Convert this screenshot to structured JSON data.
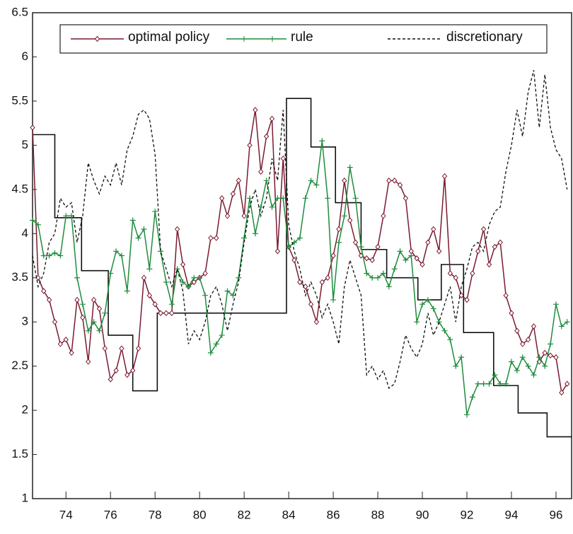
{
  "chart_data": {
    "type": "line",
    "x": [
      72.5,
      72.75,
      73,
      73.25,
      73.5,
      73.75,
      74,
      74.25,
      74.5,
      74.75,
      75,
      75.25,
      75.5,
      75.75,
      76,
      76.25,
      76.5,
      76.75,
      77,
      77.25,
      77.5,
      77.75,
      78,
      78.25,
      78.5,
      78.75,
      79,
      79.25,
      79.5,
      79.75,
      80,
      80.25,
      80.5,
      80.75,
      81,
      81.25,
      81.5,
      81.75,
      82,
      82.25,
      82.5,
      82.75,
      83,
      83.25,
      83.5,
      83.75,
      84,
      84.25,
      84.5,
      84.75,
      85,
      85.25,
      85.5,
      85.75,
      86,
      86.25,
      86.5,
      86.75,
      87,
      87.25,
      87.5,
      87.75,
      88,
      88.25,
      88.5,
      88.75,
      89,
      89.25,
      89.5,
      89.75,
      90,
      90.25,
      90.5,
      90.75,
      91,
      91.25,
      91.5,
      91.75,
      92,
      92.25,
      92.5,
      92.75,
      93,
      93.25,
      93.5,
      93.75,
      94,
      94.25,
      94.5,
      94.75,
      95,
      95.25,
      95.5,
      95.75,
      96,
      96.25,
      96.5
    ],
    "series": [
      {
        "name": "optimal policy",
        "color": "#7a1a2e",
        "marker": "diamond",
        "dash": false,
        "values": [
          5.2,
          3.5,
          3.35,
          3.25,
          3.0,
          2.75,
          2.8,
          2.65,
          3.25,
          3.05,
          2.55,
          3.25,
          3.15,
          2.7,
          2.35,
          2.45,
          2.7,
          2.4,
          2.45,
          2.7,
          3.5,
          3.3,
          3.2,
          3.1,
          3.1,
          3.1,
          4.05,
          3.65,
          3.4,
          3.45,
          3.5,
          3.55,
          3.95,
          3.95,
          4.4,
          4.2,
          4.45,
          4.6,
          4.2,
          5.0,
          5.4,
          4.7,
          5.1,
          5.3,
          3.8,
          4.85,
          3.85,
          3.7,
          3.45,
          3.4,
          3.2,
          3.0,
          3.45,
          3.5,
          3.75,
          4.05,
          4.6,
          4.15,
          3.9,
          3.75,
          3.72,
          3.7,
          3.85,
          4.2,
          4.6,
          4.6,
          4.55,
          4.4,
          3.8,
          3.72,
          3.65,
          3.9,
          4.05,
          3.8,
          4.65,
          3.55,
          3.5,
          3.3,
          3.25,
          3.55,
          3.8,
          4.05,
          3.65,
          3.85,
          3.9,
          3.3,
          3.1,
          2.9,
          2.75,
          2.8,
          2.95,
          2.55,
          2.65,
          2.62,
          2.6,
          2.2,
          2.3
        ]
      },
      {
        "name": "rule",
        "color": "#1e8c3c",
        "marker": "plus",
        "dash": false,
        "values": [
          4.15,
          4.1,
          3.75,
          3.75,
          3.78,
          3.75,
          4.2,
          4.2,
          3.5,
          3.2,
          2.9,
          3.0,
          2.9,
          3.1,
          3.55,
          3.8,
          3.75,
          3.35,
          4.15,
          3.95,
          4.05,
          3.6,
          4.25,
          3.8,
          3.45,
          3.2,
          3.6,
          3.45,
          3.4,
          3.5,
          3.5,
          3.3,
          2.65,
          2.75,
          2.85,
          3.35,
          3.3,
          3.5,
          3.95,
          4.4,
          4.0,
          4.3,
          4.6,
          4.3,
          4.4,
          4.4,
          3.85,
          3.9,
          3.95,
          4.4,
          4.6,
          4.55,
          5.05,
          4.4,
          3.25,
          3.9,
          4.2,
          4.75,
          4.4,
          3.85,
          3.55,
          3.5,
          3.5,
          3.55,
          3.4,
          3.6,
          3.8,
          3.7,
          3.75,
          3.0,
          3.2,
          3.25,
          3.15,
          3.0,
          2.9,
          2.8,
          2.5,
          2.6,
          1.95,
          2.15,
          2.3,
          2.3,
          2.3,
          2.4,
          2.3,
          2.3,
          2.55,
          2.45,
          2.6,
          2.5,
          2.4,
          2.6,
          2.5,
          2.75,
          3.2,
          2.95,
          3.0
        ]
      },
      {
        "name": "discretionary",
        "color": "#111111",
        "marker": "none",
        "dash": true,
        "values": [
          3.75,
          3.4,
          3.55,
          3.9,
          4.0,
          4.4,
          4.3,
          4.35,
          3.9,
          4.2,
          4.8,
          4.6,
          4.45,
          4.65,
          4.55,
          4.8,
          4.55,
          4.95,
          5.1,
          5.35,
          5.4,
          5.3,
          4.9,
          3.8,
          3.6,
          3.4,
          3.6,
          3.35,
          2.75,
          2.9,
          2.8,
          3.0,
          3.3,
          3.4,
          3.2,
          2.9,
          3.2,
          3.45,
          3.9,
          4.3,
          4.5,
          4.2,
          4.4,
          4.85,
          4.6,
          5.4,
          4.1,
          3.8,
          3.6,
          3.3,
          3.45,
          3.3,
          3.05,
          3.2,
          3.0,
          2.75,
          3.4,
          3.7,
          3.5,
          3.3,
          2.4,
          2.5,
          2.35,
          2.45,
          2.25,
          2.3,
          2.55,
          2.85,
          2.7,
          2.6,
          2.75,
          3.1,
          2.85,
          3.0,
          3.2,
          3.4,
          3.0,
          3.4,
          3.6,
          3.85,
          3.9,
          3.8,
          4.1,
          4.25,
          4.3,
          4.7,
          5.0,
          5.4,
          5.1,
          5.6,
          5.85,
          5.2,
          5.8,
          5.2,
          4.95,
          4.85,
          4.5
        ]
      }
    ],
    "step": {
      "color": "#111111",
      "edges": [
        72.5,
        73.5,
        74.7,
        75.9,
        77.0,
        78.1,
        83.9,
        85.0,
        86.1,
        87.25,
        88.4,
        89.8,
        90.85,
        91.85,
        93.2,
        94.3,
        95.6,
        96.7
      ],
      "values": [
        5.12,
        4.18,
        3.58,
        2.85,
        2.22,
        3.1,
        5.53,
        4.98,
        4.35,
        3.82,
        3.5,
        3.25,
        3.65,
        2.88,
        2.28,
        1.97,
        1.7
      ]
    },
    "xlim": [
      72.5,
      96.7
    ],
    "ylim": [
      1,
      6.5
    ],
    "xticks": [
      74,
      76,
      78,
      80,
      82,
      84,
      86,
      88,
      90,
      92,
      94,
      96
    ],
    "yticks": [
      1,
      1.5,
      2,
      2.5,
      3,
      3.5,
      4,
      4.5,
      5,
      5.5,
      6,
      6.5
    ],
    "legend": "top",
    "grid": false
  }
}
